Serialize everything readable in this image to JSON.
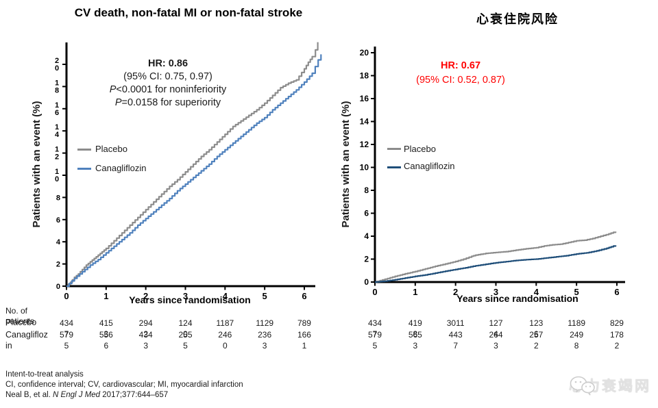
{
  "page": {
    "background": "#ffffff"
  },
  "chart_data": [
    {
      "type": "line",
      "title": "CV death, non-fatal MI or non-fatal stroke",
      "xlabel": "Years since randomisation",
      "ylabel": "Patients with an event (%)",
      "xlim": [
        0,
        6.45
      ],
      "ylim": [
        0,
        22
      ],
      "x_ticks": [
        0,
        1,
        2,
        3,
        4,
        5,
        6
      ],
      "y_ticks": [
        0,
        2,
        4,
        6,
        8,
        10,
        12,
        14,
        16,
        18,
        20
      ],
      "grid": false,
      "legend_position": "inside-left",
      "annotation": {
        "color": "#1a1a1a",
        "lines": [
          {
            "text": "HR: 0.86",
            "bold": true
          },
          {
            "text": "(95% CI: 0.75, 0.97)"
          },
          {
            "italic_prefix": "P",
            "text": "<0.0001 for noninferiority"
          },
          {
            "italic_prefix": "P",
            "text": "=0.0158 for superiority"
          }
        ]
      },
      "series": [
        {
          "name": "Placebo",
          "color": "#8c8c8c",
          "points": [
            [
              0,
              0
            ],
            [
              0.1,
              0.35
            ],
            [
              0.2,
              0.8
            ],
            [
              0.3,
              1.1
            ],
            [
              0.4,
              1.5
            ],
            [
              0.5,
              1.9
            ],
            [
              0.6,
              2.2
            ],
            [
              0.7,
              2.5
            ],
            [
              0.8,
              2.8
            ],
            [
              0.9,
              3.1
            ],
            [
              1,
              3.4
            ],
            [
              1.2,
              4.1
            ],
            [
              1.4,
              4.8
            ],
            [
              1.6,
              5.5
            ],
            [
              1.8,
              6.2
            ],
            [
              2,
              6.9
            ],
            [
              2.2,
              7.6
            ],
            [
              2.4,
              8.3
            ],
            [
              2.6,
              9.0
            ],
            [
              2.8,
              9.6
            ],
            [
              3,
              10.3
            ],
            [
              3.2,
              11.0
            ],
            [
              3.4,
              11.7
            ],
            [
              3.6,
              12.3
            ],
            [
              3.8,
              13.0
            ],
            [
              4,
              13.7
            ],
            [
              4.2,
              14.4
            ],
            [
              4.4,
              14.9
            ],
            [
              4.6,
              15.4
            ],
            [
              4.8,
              15.9
            ],
            [
              5,
              16.5
            ],
            [
              5.2,
              17.2
            ],
            [
              5.4,
              17.9
            ],
            [
              5.6,
              18.3
            ],
            [
              5.8,
              18.6
            ],
            [
              6,
              19.6
            ],
            [
              6.1,
              20.2
            ],
            [
              6.2,
              20.7
            ],
            [
              6.28,
              21.3
            ],
            [
              6.34,
              22.0
            ]
          ]
        },
        {
          "name": "Canagliflozin",
          "color": "#4f81bd",
          "points": [
            [
              0,
              0
            ],
            [
              0.2,
              0.7
            ],
            [
              0.4,
              1.3
            ],
            [
              0.6,
              1.9
            ],
            [
              0.8,
              2.4
            ],
            [
              1,
              3.0
            ],
            [
              1.2,
              3.6
            ],
            [
              1.4,
              4.2
            ],
            [
              1.6,
              4.8
            ],
            [
              1.8,
              5.5
            ],
            [
              2,
              6.1
            ],
            [
              2.2,
              6.7
            ],
            [
              2.4,
              7.3
            ],
            [
              2.6,
              7.9
            ],
            [
              2.8,
              8.6
            ],
            [
              3,
              9.2
            ],
            [
              3.2,
              9.8
            ],
            [
              3.4,
              10.4
            ],
            [
              3.6,
              11.0
            ],
            [
              3.8,
              11.7
            ],
            [
              4,
              12.3
            ],
            [
              4.2,
              12.9
            ],
            [
              4.4,
              13.5
            ],
            [
              4.6,
              14.1
            ],
            [
              4.8,
              14.7
            ],
            [
              5,
              15.2
            ],
            [
              5.2,
              15.9
            ],
            [
              5.4,
              16.5
            ],
            [
              5.6,
              17.1
            ],
            [
              5.8,
              17.7
            ],
            [
              6,
              18.4
            ],
            [
              6.2,
              19.2
            ],
            [
              6.35,
              20.4
            ],
            [
              6.42,
              20.9
            ]
          ]
        }
      ],
      "at_risk": {
        "header": "No. of patients",
        "rows": [
          {
            "label": "Placebo",
            "values": [
              "4347",
              "4153",
              "2942",
              "1240",
              "1187",
              "1129",
              "789"
            ]
          },
          {
            "label": "Canagliflozin",
            "values": [
              "5795",
              "5566",
              "4343",
              "2555",
              "2460",
              "2363",
              "1661"
            ]
          }
        ]
      }
    },
    {
      "type": "line",
      "title": "心衰住院风险",
      "xlabel": "Years since randomisation",
      "ylabel": "Patients with an event (%)",
      "xlim": [
        0,
        6.2
      ],
      "ylim": [
        0,
        20.5
      ],
      "x_ticks": [
        0,
        1,
        2,
        3,
        4,
        5,
        6
      ],
      "y_ticks": [
        0,
        2,
        4,
        6,
        8,
        10,
        12,
        14,
        16,
        18,
        20
      ],
      "grid": false,
      "legend_position": "inside-left",
      "annotation": {
        "color": "#ff0000",
        "lines": [
          {
            "text": "HR: 0.67",
            "bold": true
          },
          {
            "text": "(95% CI: 0.52, 0.87)"
          }
        ]
      },
      "series": [
        {
          "name": "Placebo",
          "color": "#8c8c8c",
          "points": [
            [
              0,
              0
            ],
            [
              0.25,
              0.25
            ],
            [
              0.5,
              0.5
            ],
            [
              0.75,
              0.72
            ],
            [
              1,
              0.92
            ],
            [
              1.25,
              1.15
            ],
            [
              1.5,
              1.38
            ],
            [
              1.75,
              1.58
            ],
            [
              2,
              1.8
            ],
            [
              2.2,
              2.0
            ],
            [
              2.4,
              2.25
            ],
            [
              2.5,
              2.35
            ],
            [
              2.75,
              2.5
            ],
            [
              3,
              2.58
            ],
            [
              3.25,
              2.65
            ],
            [
              3.5,
              2.78
            ],
            [
              3.75,
              2.9
            ],
            [
              4,
              3.0
            ],
            [
              4.2,
              3.15
            ],
            [
              4.4,
              3.25
            ],
            [
              4.6,
              3.3
            ],
            [
              4.8,
              3.45
            ],
            [
              5,
              3.6
            ],
            [
              5.2,
              3.65
            ],
            [
              5.4,
              3.8
            ],
            [
              5.6,
              4.0
            ],
            [
              5.8,
              4.2
            ],
            [
              5.97,
              4.4
            ]
          ]
        },
        {
          "name": "Canagliflozin",
          "color": "#1f4e79",
          "points": [
            [
              0,
              0
            ],
            [
              0.25,
              0.08
            ],
            [
              0.5,
              0.2
            ],
            [
              0.75,
              0.35
            ],
            [
              1,
              0.5
            ],
            [
              1.25,
              0.62
            ],
            [
              1.5,
              0.78
            ],
            [
              1.75,
              0.95
            ],
            [
              2,
              1.1
            ],
            [
              2.25,
              1.25
            ],
            [
              2.5,
              1.42
            ],
            [
              2.75,
              1.55
            ],
            [
              3,
              1.68
            ],
            [
              3.25,
              1.78
            ],
            [
              3.5,
              1.88
            ],
            [
              3.75,
              1.95
            ],
            [
              4,
              2.0
            ],
            [
              4.25,
              2.1
            ],
            [
              4.5,
              2.2
            ],
            [
              4.75,
              2.3
            ],
            [
              5,
              2.45
            ],
            [
              5.25,
              2.55
            ],
            [
              5.5,
              2.72
            ],
            [
              5.75,
              2.95
            ],
            [
              5.97,
              3.2
            ]
          ]
        }
      ],
      "at_risk": {
        "rows": [
          {
            "label": "Placebo",
            "values": [
              "4347",
              "4198",
              "3011",
              "1274",
              "1236",
              "1189",
              "829"
            ]
          },
          {
            "label": "Canagliflozin",
            "values": [
              "5795",
              "5653",
              "4437",
              "2643",
              "2572",
              "2498",
              "1782"
            ]
          }
        ]
      }
    }
  ],
  "footer": {
    "line1": "Intent-to-treat analysis",
    "line2": "CI, confidence interval; CV, cardiovascular; MI, myocardial infarction",
    "line3_prefix": "Neal B, et al. ",
    "line3_italic": "N Engl J Med",
    "line3_suffix": " 2017;377:644–657"
  },
  "watermark": {
    "icon": "wechat-icon",
    "text": "心力衰竭网"
  }
}
